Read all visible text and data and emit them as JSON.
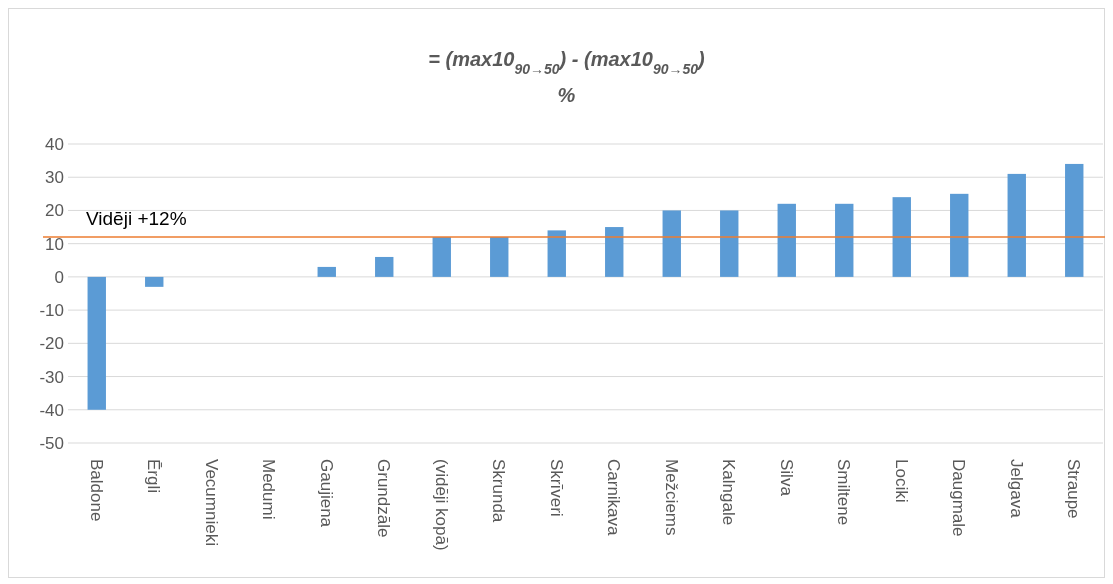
{
  "chart_data": {
    "type": "bar",
    "title": "= (max10$_{90→50}$) - (max10$_{90→50}$)",
    "subtitle": "%",
    "categories": [
      "Baldone",
      "Ērgli",
      "Vecumnieki",
      "Medumi",
      "Gaujiena",
      "Grundzāle",
      "(vidēji kopā)",
      "Skrunda",
      "Skrīveri",
      "Carnikava",
      "Mežciems",
      "Kalngale",
      "Silva",
      "Smiltene",
      "Lociki",
      "Daugmale",
      "Jelgava",
      "Straupe"
    ],
    "values": [
      -40,
      -3,
      0,
      0,
      3,
      6,
      12,
      12,
      14,
      15,
      20,
      20,
      22,
      22,
      24,
      25,
      31,
      34
    ],
    "color": "#5b9bd5",
    "ylim": [
      -50,
      40
    ],
    "yticks": [
      -50,
      -40,
      -30,
      -20,
      -10,
      0,
      10,
      20,
      30,
      40
    ],
    "grid": "y",
    "ref_lines": [
      {
        "axis": "y",
        "value": 12,
        "label": "Vidēji +12%",
        "color": "#ed7d31"
      }
    ]
  }
}
